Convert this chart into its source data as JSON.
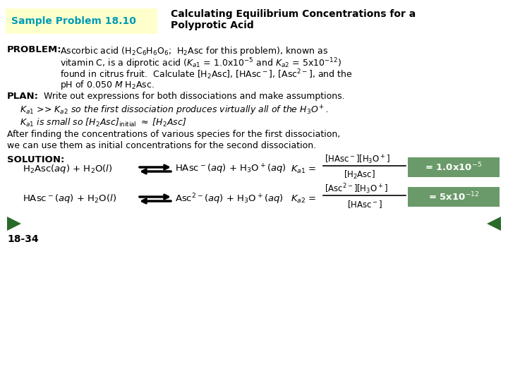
{
  "header_bg": "#ffffcc",
  "header_text_color": "#009db5",
  "header_label": "Sample Problem 18.10",
  "header_title_line1": "Calculating Equilibrium Concentrations for a",
  "header_title_line2": "Polyprotic Acid",
  "bg_color": "#ffffff",
  "green_box_color": "#6a9a6a",
  "green_arrow_color": "#2a6a2a",
  "page_number": "18-34"
}
